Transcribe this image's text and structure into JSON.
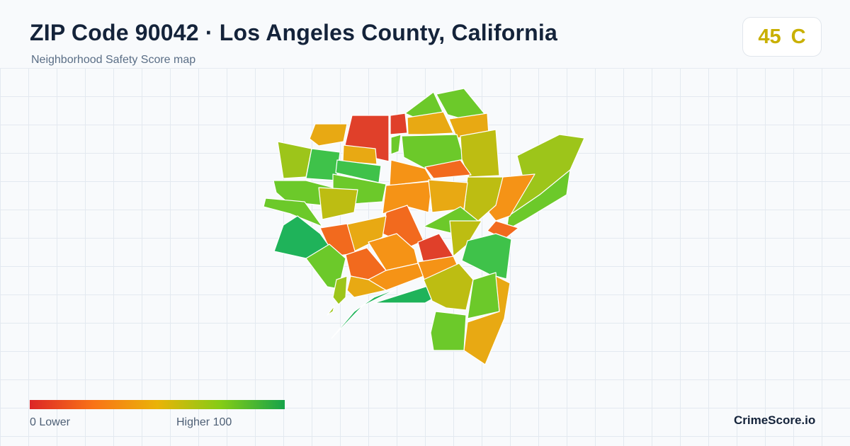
{
  "header": {
    "title": "ZIP Code 90042 · Los Angeles County, California",
    "subtitle": "Neighborhood Safety Score map"
  },
  "score": {
    "value": "45",
    "grade": "C",
    "color": "#c9b000"
  },
  "legend": {
    "low_label": "0  Lower",
    "high_label": "Higher  100",
    "gradient_colors": [
      "#dc2626",
      "#f97316",
      "#eab308",
      "#84cc16",
      "#16a34a"
    ]
  },
  "brand": "CrimeScore.io",
  "map": {
    "region_colors": {
      "red": "#e0402a",
      "orange_red": "#f26a1e",
      "orange": "#f59316",
      "amber": "#e8a913",
      "olive": "#bdbd12",
      "yellow_green": "#9dc51a",
      "light_green": "#6cc92a",
      "green": "#3fc24a",
      "emerald": "#1fb35a"
    }
  }
}
